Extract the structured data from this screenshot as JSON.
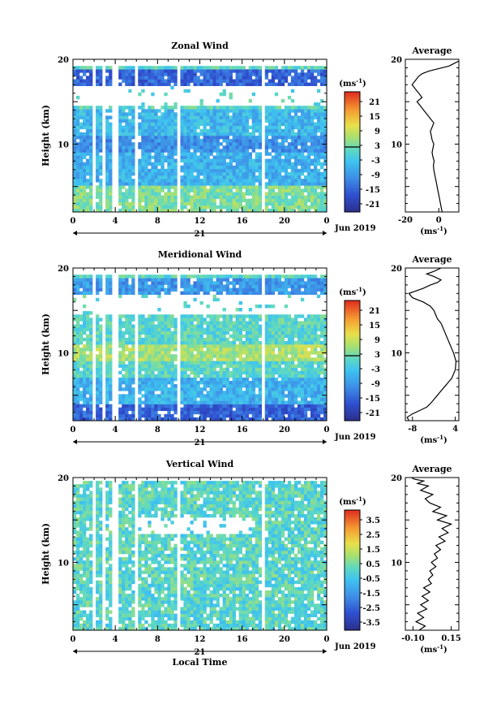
{
  "figure": {
    "date_label": "Jun 2019",
    "day_label": "21",
    "xlabel": "Local Time",
    "ylabel": "Height (km)",
    "units": "(ms",
    "units_exp": "-1",
    "units_close": ")",
    "avg_title": "Average",
    "time_ticks": [
      "0",
      "4",
      "8",
      "12",
      "16",
      "20",
      "0"
    ],
    "height_ticks": [
      "20",
      "10"
    ]
  },
  "panels": [
    {
      "key": "zonal",
      "title": "Zonal Wind",
      "colorbar_ticks": [
        "21",
        "15",
        "9",
        "3",
        "-3",
        "-9",
        "-15",
        "-21"
      ],
      "colorbar_range": [
        -24,
        24
      ],
      "avg_x_ticks": [
        "-20",
        "0"
      ],
      "avg_xlim": [
        -20,
        12
      ],
      "avg_profile_x": [
        2,
        1.5,
        1,
        0.5,
        0,
        -0.5,
        -1,
        -1.5,
        -2,
        -2.5,
        -3,
        -3.2,
        -2.8,
        -3.5,
        -4,
        -3.5,
        -3,
        -4,
        -4.5,
        -5,
        -4,
        -3,
        -5,
        -7,
        -9,
        -11,
        -13,
        -10,
        -12,
        -14,
        -16,
        -14,
        -12,
        -10,
        -6,
        2,
        6,
        8,
        10,
        12
      ],
      "avg_profile_h": [
        2,
        2.5,
        3,
        3.5,
        4,
        4.5,
        5,
        5.5,
        6,
        6.5,
        7,
        7.5,
        8,
        8.5,
        9,
        9.5,
        10,
        10.5,
        11,
        11.5,
        12,
        12.5,
        13,
        13.5,
        14,
        14.5,
        15,
        15.5,
        16,
        16.5,
        17,
        17.5,
        18,
        18.3,
        18.6,
        19,
        19.2,
        19.4,
        19.6,
        19.8
      ]
    },
    {
      "key": "meridional",
      "title": "Meridional Wind",
      "colorbar_ticks": [
        "21",
        "15",
        "9",
        "3",
        "-3",
        "-9",
        "-15",
        "-21"
      ],
      "colorbar_range": [
        -24,
        24
      ],
      "avg_x_ticks": [
        "-8",
        "4"
      ],
      "avg_xlim": [
        -10,
        5
      ],
      "avg_profile_x": [
        -9,
        -9.5,
        -8,
        -6,
        -4,
        -3,
        -2,
        -1,
        0,
        1,
        2,
        3,
        3.5,
        4,
        4.2,
        3.5,
        3,
        2.5,
        2,
        1.5,
        1,
        0.5,
        0,
        -1,
        -1.5,
        -2,
        -3,
        -5,
        -8,
        -9,
        -7,
        -5,
        -3,
        -1,
        0,
        -2,
        -4,
        -2,
        0
      ],
      "avg_profile_h": [
        2,
        2.4,
        2.8,
        3.2,
        3.6,
        4,
        4.5,
        5,
        5.5,
        6,
        6.5,
        7,
        7.5,
        8,
        9,
        10,
        10.5,
        11,
        11.5,
        12,
        12.5,
        13,
        13.5,
        14,
        14.5,
        15,
        15.5,
        16,
        16.5,
        17,
        17.3,
        17.6,
        18,
        18.3,
        18.6,
        19,
        19.3,
        19.6,
        20
      ]
    },
    {
      "key": "vertical",
      "title": "Vertical Wind",
      "colorbar_ticks": [
        "3.5",
        "2.5",
        "1.5",
        "0.5",
        "-0.5",
        "-1.5",
        "-2.5",
        "-3.5"
      ],
      "colorbar_range": [
        -4,
        4
      ],
      "avg_x_ticks": [
        "-0.10",
        "0.15"
      ],
      "avg_xlim": [
        -0.15,
        0.2
      ],
      "avg_profile_x": [
        -0.06,
        -0.02,
        -0.08,
        -0.03,
        -0.07,
        -0.01,
        -0.05,
        0.0,
        -0.04,
        0.01,
        -0.03,
        0.02,
        0.0,
        0.03,
        0.01,
        0.05,
        0.02,
        0.06,
        0.04,
        0.08,
        0.05,
        0.11,
        0.07,
        0.13,
        0.09,
        0.15,
        0.06,
        0.12,
        0.03,
        0.08,
        0.01,
        -0.02,
        0.03,
        -0.05,
        0.0,
        -0.07,
        -0.03,
        -0.09,
        -0.11
      ],
      "avg_profile_h": [
        2,
        2.5,
        3,
        3.5,
        4,
        4.5,
        5,
        5.5,
        6,
        6.5,
        7,
        7.5,
        8,
        8.5,
        9,
        9.5,
        10,
        10.5,
        11,
        11.5,
        12,
        12.5,
        13,
        13.5,
        14,
        14.5,
        15,
        15.5,
        16,
        16.5,
        17,
        17.5,
        18,
        18.5,
        19,
        19.3,
        19.6,
        19.8,
        20
      ]
    }
  ],
  "chart_data": [
    {
      "type": "heatmap",
      "title": "Zonal Wind",
      "xlabel": "",
      "ylabel": "Height (km)",
      "xlim": [
        0,
        24
      ],
      "ylim": [
        2,
        20
      ],
      "x_ticks": [
        "0",
        "4",
        "8",
        "12",
        "16",
        "20",
        "0"
      ],
      "colorbar_label": "(ms-1)",
      "colorbar_ticks": [
        21,
        15,
        9,
        3,
        -3,
        -9,
        -15,
        -21
      ],
      "bands": [
        {
          "height": [
            2,
            5
          ],
          "value": 3
        },
        {
          "height": [
            5,
            9
          ],
          "value": -6
        },
        {
          "height": [
            9,
            11
          ],
          "value": -10
        },
        {
          "height": [
            11,
            14
          ],
          "value": -5
        },
        {
          "height": [
            17,
            19
          ],
          "value": -15
        }
      ],
      "data_gaps_hours": [
        2,
        3,
        4,
        6,
        10,
        18
      ]
    },
    {
      "type": "heatmap",
      "title": "Meridional Wind",
      "xlabel": "",
      "ylabel": "Height (km)",
      "xlim": [
        0,
        24
      ],
      "ylim": [
        2,
        20
      ],
      "x_ticks": [
        "0",
        "4",
        "8",
        "12",
        "16",
        "20",
        "0"
      ],
      "colorbar_label": "(ms-1)",
      "colorbar_ticks": [
        21,
        15,
        9,
        3,
        -3,
        -9,
        -15,
        -21
      ],
      "bands": [
        {
          "height": [
            2,
            4
          ],
          "value": -15
        },
        {
          "height": [
            4,
            7
          ],
          "value": -6
        },
        {
          "height": [
            7,
            9
          ],
          "value": 0
        },
        {
          "height": [
            9,
            11
          ],
          "value": 6
        },
        {
          "height": [
            11,
            14
          ],
          "value": 0
        },
        {
          "height": [
            17,
            19
          ],
          "value": -9
        }
      ],
      "data_gaps_hours": [
        2,
        3,
        4,
        6,
        10,
        18
      ]
    },
    {
      "type": "heatmap",
      "title": "Vertical Wind",
      "xlabel": "Local Time",
      "ylabel": "Height (km)",
      "xlim": [
        0,
        24
      ],
      "ylim": [
        2,
        20
      ],
      "x_ticks": [
        "0",
        "4",
        "8",
        "12",
        "16",
        "20",
        "0"
      ],
      "colorbar_label": "(ms-1)",
      "colorbar_ticks": [
        3.5,
        2.5,
        1.5,
        0.5,
        -0.5,
        -1.5,
        -2.5,
        -3.5
      ],
      "bands": [
        {
          "height": [
            2,
            20
          ],
          "value": 0
        }
      ],
      "data_gaps_hours": [
        2,
        3,
        4,
        6,
        10,
        18
      ]
    }
  ]
}
